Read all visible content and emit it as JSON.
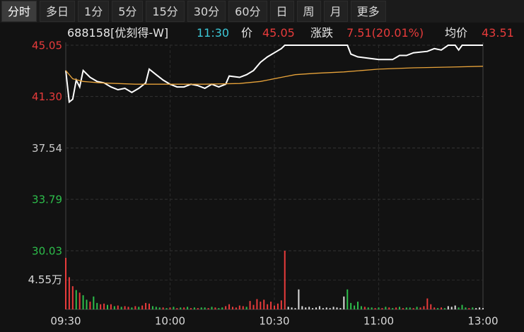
{
  "tabs": {
    "items": [
      "分时",
      "多日",
      "1分",
      "5分",
      "15分",
      "30分",
      "60分",
      "日",
      "周",
      "月",
      "更多"
    ],
    "active": 0
  },
  "header": {
    "code": "688158[优刻得-W]",
    "time": "11:30",
    "price_label": "价",
    "price": "45.05",
    "change_label": "涨跌",
    "change": "7.51(20.01%)",
    "avg_label": "均价",
    "avg": "43.51"
  },
  "chart_data": {
    "type": "line",
    "xlim": [
      0,
      120
    ],
    "xticks": [
      {
        "value": 0,
        "label": "09:30"
      },
      {
        "value": 30,
        "label": "10:00"
      },
      {
        "value": 60,
        "label": "10:30"
      },
      {
        "value": 90,
        "label": "11:00"
      },
      {
        "value": 120,
        "label": "13:00"
      }
    ],
    "ylim": [
      30.03,
      45.05
    ],
    "yticks": [
      45.05,
      {
        "value": 41.3,
        "label": "41.30"
      },
      37.54,
      33.79,
      30.03
    ],
    "ytick_colors": [
      "#e83b3b",
      "#e83b3b",
      "#c8c8c8",
      "#2dbe4b",
      "#2dbe4b"
    ],
    "grid": true,
    "series": [
      {
        "color": "#ffffff",
        "x": [
          0,
          1,
          2,
          3,
          4,
          5,
          7,
          9,
          11,
          13,
          15,
          17,
          19,
          21,
          23,
          24,
          26,
          28,
          30,
          32,
          34,
          36,
          38,
          40,
          42,
          44,
          46,
          47,
          50,
          52,
          54,
          56,
          58,
          60,
          62,
          63,
          70,
          81,
          82,
          84,
          87,
          90,
          94,
          96,
          98,
          100,
          104,
          106,
          108,
          110,
          112,
          113,
          114,
          116,
          120
        ],
        "values": [
          43.2,
          40.9,
          41.1,
          42.5,
          42.0,
          43.2,
          42.7,
          42.4,
          42.3,
          42.0,
          41.8,
          41.9,
          41.6,
          41.9,
          42.3,
          43.3,
          42.9,
          42.5,
          42.2,
          42.0,
          42.0,
          42.2,
          42.1,
          41.9,
          42.2,
          42.0,
          42.2,
          42.8,
          42.7,
          42.9,
          43.2,
          43.8,
          44.2,
          44.5,
          44.8,
          45.05,
          45.05,
          45.05,
          44.4,
          44.2,
          44.1,
          44.0,
          44.0,
          44.3,
          44.3,
          44.5,
          44.6,
          44.8,
          44.7,
          45.05,
          45.05,
          44.7,
          45.05,
          45.05,
          45.05
        ]
      },
      {
        "color": "#e8a33a",
        "x": [
          0,
          2,
          5,
          10,
          20,
          40,
          50,
          56,
          62,
          66,
          72,
          80,
          90,
          100,
          110,
          120
        ],
        "values": [
          43.2,
          42.6,
          42.4,
          42.3,
          42.2,
          42.2,
          42.25,
          42.4,
          42.7,
          42.9,
          43.0,
          43.1,
          43.3,
          43.4,
          43.45,
          43.51
        ]
      }
    ],
    "volume": {
      "ylim": [
        0,
        9.1
      ],
      "yticks": [
        {
          "value": 4.55,
          "label": "4.55万"
        }
      ],
      "x": [
        0,
        1,
        2,
        3,
        4,
        5,
        6,
        7,
        8,
        9,
        10,
        11,
        12,
        13,
        14,
        15,
        16,
        17,
        18,
        19,
        20,
        21,
        22,
        23,
        24,
        25,
        26,
        27,
        28,
        29,
        30,
        31,
        32,
        33,
        34,
        35,
        36,
        37,
        38,
        39,
        40,
        41,
        42,
        43,
        44,
        45,
        46,
        47,
        48,
        49,
        50,
        51,
        52,
        53,
        54,
        55,
        56,
        57,
        58,
        59,
        60,
        61,
        62,
        63,
        64,
        65,
        66,
        67,
        68,
        69,
        70,
        71,
        72,
        73,
        74,
        75,
        76,
        77,
        78,
        79,
        80,
        81,
        82,
        83,
        84,
        85,
        86,
        87,
        88,
        89,
        90,
        91,
        92,
        93,
        94,
        95,
        96,
        97,
        98,
        99,
        100,
        101,
        102,
        103,
        104,
        105,
        106,
        107,
        108,
        109,
        110,
        111,
        112,
        113,
        114,
        115,
        116,
        117,
        118,
        119,
        120
      ],
      "values": [
        8.0,
        5.0,
        3.6,
        3.0,
        2.6,
        2.2,
        1.5,
        1.2,
        2.0,
        1.0,
        0.8,
        0.9,
        0.7,
        0.8,
        0.5,
        0.6,
        0.4,
        0.5,
        0.4,
        0.3,
        0.5,
        0.4,
        0.6,
        1.0,
        0.9,
        0.5,
        0.4,
        0.3,
        0.3,
        0.2,
        0.3,
        0.4,
        0.2,
        0.3,
        0.3,
        0.4,
        0.2,
        0.3,
        0.2,
        0.3,
        0.3,
        0.2,
        0.4,
        0.3,
        0.2,
        0.3,
        0.5,
        0.8,
        0.4,
        0.3,
        0.6,
        0.5,
        0.4,
        1.3,
        0.7,
        1.6,
        1.2,
        1.5,
        0.8,
        1.2,
        0.6,
        0.9,
        1.4,
        9.1,
        0.4,
        0.3,
        0.2,
        3.1,
        0.5,
        0.3,
        0.4,
        0.2,
        0.3,
        0.5,
        0.2,
        0.3,
        0.2,
        0.4,
        0.3,
        0.2,
        2.0,
        3.1,
        1.0,
        0.6,
        1.2,
        0.5,
        0.4,
        0.3,
        0.3,
        0.2,
        0.3,
        0.2,
        0.4,
        0.3,
        0.2,
        0.3,
        0.4,
        0.2,
        0.3,
        0.3,
        0.2,
        0.4,
        0.3,
        0.5,
        1.7,
        0.8,
        0.3,
        0.2,
        0.3,
        0.2,
        0.5,
        0.4,
        0.6,
        0.3,
        0.7,
        0.3,
        0.2,
        0.3,
        0.2,
        0.3,
        0.2
      ],
      "colors": [
        "#e83b3b",
        "#e83b3b",
        "#e83b3b",
        "#2dbe4b",
        "#e83b3b",
        "#2dbe4b",
        "#2dbe4b",
        "#e83b3b",
        "#2dbe4b",
        "#2dbe4b",
        "#e83b3b",
        "#e83b3b",
        "#2dbe4b",
        "#e83b3b",
        "#2dbe4b",
        "#e83b3b",
        "#2dbe4b",
        "#e83b3b",
        "#e83b3b",
        "#2dbe4b",
        "#e83b3b",
        "#2dbe4b",
        "#e83b3b",
        "#e83b3b",
        "#e83b3b",
        "#2dbe4b",
        "#2dbe4b",
        "#2dbe4b",
        "#e83b3b",
        "#2dbe4b",
        "#e83b3b",
        "#2dbe4b",
        "#e83b3b",
        "#2dbe4b",
        "#e83b3b",
        "#2dbe4b",
        "#e83b3b",
        "#2dbe4b",
        "#e83b3b",
        "#2dbe4b",
        "#2dbe4b",
        "#e83b3b",
        "#2dbe4b",
        "#e83b3b",
        "#2dbe4b",
        "#2dbe4b",
        "#e83b3b",
        "#e83b3b",
        "#e83b3b",
        "#e83b3b",
        "#e83b3b",
        "#e83b3b",
        "#2dbe4b",
        "#e83b3b",
        "#e83b3b",
        "#e83b3b",
        "#e83b3b",
        "#e83b3b",
        "#e83b3b",
        "#e83b3b",
        "#e83b3b",
        "#e83b3b",
        "#e83b3b",
        "#e83b3b",
        "#dddddd",
        "#dddddd",
        "#dddddd",
        "#dddddd",
        "#dddddd",
        "#dddddd",
        "#dddddd",
        "#dddddd",
        "#dddddd",
        "#dddddd",
        "#dddddd",
        "#dddddd",
        "#dddddd",
        "#dddddd",
        "#dddddd",
        "#dddddd",
        "#dddddd",
        "#2dbe4b",
        "#2dbe4b",
        "#2dbe4b",
        "#2dbe4b",
        "#2dbe4b",
        "#e83b3b",
        "#2dbe4b",
        "#2dbe4b",
        "#e83b3b",
        "#2dbe4b",
        "#e83b3b",
        "#2dbe4b",
        "#e83b3b",
        "#2dbe4b",
        "#e83b3b",
        "#2dbe4b",
        "#e83b3b",
        "#2dbe4b",
        "#2dbe4b",
        "#e83b3b",
        "#2dbe4b",
        "#e83b3b",
        "#e83b3b",
        "#e83b3b",
        "#e83b3b",
        "#e83b3b",
        "#2dbe4b",
        "#e83b3b",
        "#2dbe4b",
        "#dddddd",
        "#dddddd",
        "#dddddd",
        "#2dbe4b",
        "#2dbe4b",
        "#2dbe4b",
        "#e83b3b",
        "#2dbe4b",
        "#dddddd",
        "#dddddd",
        "#dddddd"
      ]
    }
  }
}
